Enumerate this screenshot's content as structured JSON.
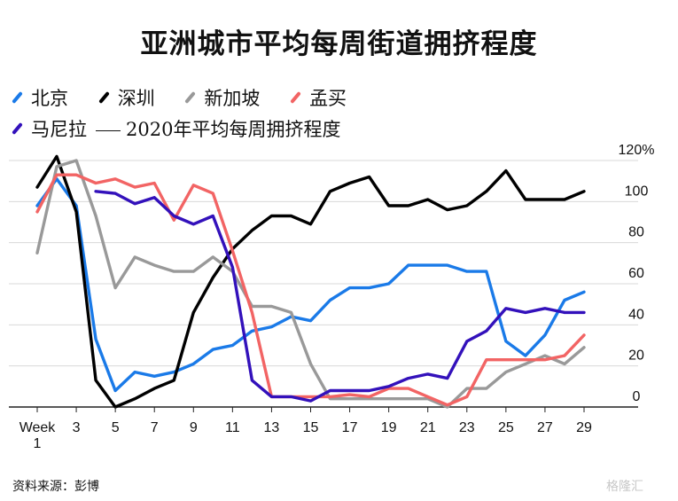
{
  "title": "亚洲城市平均每周街道拥挤程度",
  "legend": {
    "beijing": "北京",
    "shenzhen": "深圳",
    "singapore": "新加坡",
    "mumbai": "孟买",
    "manila": "马尼拉",
    "average": "2020年平均每周拥挤程度"
  },
  "source": "资料来源：彭博",
  "watermark": "格隆汇",
  "chart_data": {
    "type": "line",
    "title": "亚洲城市平均每周街道拥挤程度",
    "xlabel": "",
    "ylabel": "",
    "xlim": [
      1,
      29
    ],
    "ylim": [
      0,
      120
    ],
    "y_ticks": [
      "0",
      "20",
      "40",
      "60",
      "80",
      "100",
      "120%"
    ],
    "x_ticks": [
      {
        "x": 1,
        "label": "Week\n1"
      },
      {
        "x": 3,
        "label": "3"
      },
      {
        "x": 5,
        "label": "5"
      },
      {
        "x": 7,
        "label": "7"
      },
      {
        "x": 9,
        "label": "9"
      },
      {
        "x": 11,
        "label": "11"
      },
      {
        "x": 13,
        "label": "13"
      },
      {
        "x": 15,
        "label": "15"
      },
      {
        "x": 17,
        "label": "17"
      },
      {
        "x": 19,
        "label": "19"
      },
      {
        "x": 21,
        "label": "21"
      },
      {
        "x": 23,
        "label": "23"
      },
      {
        "x": 25,
        "label": "25"
      },
      {
        "x": 27,
        "label": "27"
      },
      {
        "x": 29,
        "label": "29"
      }
    ],
    "grid": true,
    "legend_position": "top-left",
    "series": [
      {
        "name": "北京",
        "color": "#1a7ae8",
        "x": [
          1,
          2,
          3,
          4,
          5,
          6,
          7,
          8,
          9,
          10,
          11,
          12,
          13,
          14,
          15,
          16,
          17,
          18,
          19,
          20,
          21,
          22,
          23,
          24,
          25,
          26,
          27,
          28,
          29
        ],
        "y": [
          98,
          111,
          98,
          33,
          8,
          17,
          15,
          17,
          21,
          28,
          30,
          37,
          39,
          44,
          42,
          52,
          58,
          58,
          60,
          69,
          69,
          69,
          66,
          66,
          32,
          25,
          35,
          52,
          56
        ]
      },
      {
        "name": "深圳",
        "color": "#000000",
        "x": [
          1,
          2,
          3,
          4,
          5,
          6,
          7,
          8,
          9,
          10,
          11,
          12,
          13,
          14,
          15,
          16,
          17,
          18,
          19,
          20,
          21,
          22,
          23,
          24,
          25,
          26,
          27,
          28,
          29
        ],
        "y": [
          107,
          122,
          95,
          13,
          0,
          4,
          9,
          13,
          46,
          63,
          77,
          86,
          93,
          93,
          89,
          105,
          109,
          112,
          98,
          98,
          101,
          96,
          98,
          105,
          115,
          101,
          101,
          101,
          105
        ]
      },
      {
        "name": "新加坡",
        "color": "#999999",
        "x": [
          1,
          2,
          3,
          4,
          5,
          6,
          7,
          8,
          9,
          10,
          11,
          12,
          13,
          14,
          15,
          16,
          17,
          18,
          19,
          20,
          21,
          22,
          23,
          24,
          25,
          26,
          27,
          28,
          29
        ],
        "y": [
          75,
          117,
          120,
          93,
          58,
          73,
          69,
          66,
          66,
          73,
          66,
          49,
          49,
          46,
          21,
          4,
          4,
          4,
          4,
          4,
          4,
          0,
          9,
          9,
          17,
          21,
          25,
          21,
          29
        ]
      },
      {
        "name": "孟买",
        "color": "#f26464",
        "x": [
          1,
          2,
          3,
          4,
          5,
          6,
          7,
          8,
          9,
          10,
          11,
          12,
          13,
          14,
          15,
          16,
          17,
          18,
          19,
          20,
          21,
          22,
          23,
          24,
          25,
          26,
          27,
          28,
          29
        ],
        "y": [
          95,
          113,
          113,
          109,
          111,
          107,
          109,
          91,
          108,
          104,
          76,
          46,
          5,
          5,
          5,
          5,
          6,
          5,
          9,
          9,
          5,
          1,
          5,
          23,
          23,
          23,
          23,
          25,
          35
        ]
      },
      {
        "name": "马尼拉",
        "color": "#3311bb",
        "x": [
          4,
          5,
          6,
          7,
          8,
          9,
          10,
          11,
          12,
          13,
          14,
          15,
          16,
          17,
          18,
          19,
          20,
          21,
          22,
          23,
          24,
          25,
          26,
          27,
          28,
          29
        ],
        "y": [
          105,
          104,
          99,
          102,
          93,
          89,
          93,
          68,
          13,
          5,
          5,
          3,
          8,
          8,
          8,
          10,
          14,
          16,
          14,
          32,
          37,
          48,
          46,
          48,
          46,
          46
        ]
      }
    ]
  }
}
